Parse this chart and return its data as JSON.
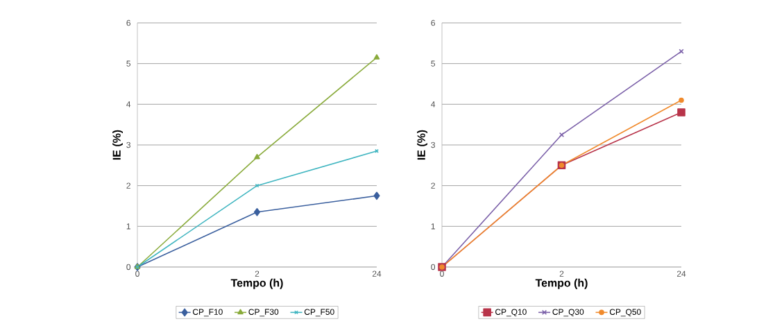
{
  "chart_data": [
    {
      "type": "line",
      "xlabel": "Tempo (h)",
      "ylabel": "IE (%)",
      "categories": [
        "0",
        "2",
        "24"
      ],
      "ylim": [
        0,
        6
      ],
      "yticks": [
        0,
        1,
        2,
        3,
        4,
        5,
        6
      ],
      "grid": "y",
      "legend": "bottom",
      "line_style": "solid",
      "series": [
        {
          "name": "CP_F10",
          "color": "#3a5f9e",
          "marker": "diamond",
          "values": [
            0,
            1.35,
            1.75
          ]
        },
        {
          "name": "CP_F30",
          "color": "#8aab3c",
          "marker": "triangle",
          "values": [
            0,
            2.7,
            5.15
          ]
        },
        {
          "name": "CP_F50",
          "color": "#3fb5c0",
          "marker": "cross",
          "values": [
            0,
            2.0,
            2.85
          ]
        }
      ]
    },
    {
      "type": "line",
      "xlabel": "Tempo (h)",
      "ylabel": "IE (%)",
      "categories": [
        "0",
        "2",
        "24"
      ],
      "ylim": [
        0,
        6
      ],
      "yticks": [
        0,
        1,
        2,
        3,
        4,
        5,
        6
      ],
      "grid": "y",
      "legend": "bottom",
      "line_style": "solid",
      "series": [
        {
          "name": "CP_Q10",
          "color": "#b8344a",
          "marker": "square",
          "values": [
            0,
            2.5,
            3.8
          ]
        },
        {
          "name": "CP_Q30",
          "color": "#7a5fa8",
          "marker": "cross",
          "values": [
            0,
            3.25,
            5.3
          ]
        },
        {
          "name": "CP_Q50",
          "color": "#f08a2c",
          "marker": "circle",
          "values": [
            0,
            2.5,
            4.1
          ]
        }
      ]
    }
  ]
}
